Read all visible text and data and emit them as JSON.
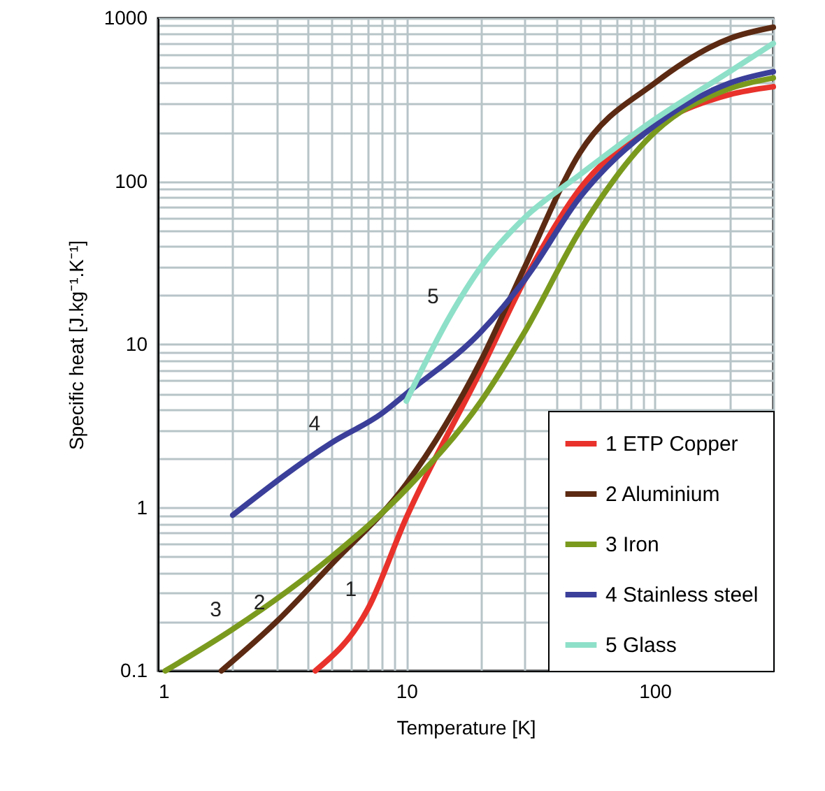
{
  "chart_data": {
    "type": "line",
    "xlabel": "Temperature [K]",
    "ylabel": "Specific heat [J.kg⁻¹.K⁻¹]",
    "log": "xy",
    "grid": true,
    "legend": "bottom right",
    "line_style": "solid",
    "marker": "none",
    "xlim": [
      1,
      300
    ],
    "ylim": [
      0.1,
      1000
    ],
    "xticks": [
      1,
      {
        "value": 2,
        "label": null
      },
      {
        "value": 3,
        "label": null
      },
      {
        "value": 4,
        "label": null
      },
      {
        "value": 5,
        "label": null
      },
      {
        "value": 6,
        "label": null
      },
      {
        "value": 7,
        "label": null
      },
      {
        "value": 8,
        "label": null
      },
      {
        "value": 9,
        "label": null
      },
      10,
      {
        "value": 20,
        "label": null
      },
      {
        "value": 30,
        "label": null
      },
      {
        "value": 40,
        "label": null
      },
      {
        "value": 50,
        "label": null
      },
      {
        "value": 60,
        "label": null
      },
      {
        "value": 70,
        "label": null
      },
      {
        "value": 80,
        "label": null
      },
      {
        "value": 90,
        "label": null
      },
      100,
      {
        "value": 200,
        "label": null
      },
      {
        "value": 300,
        "label": null
      }
    ],
    "yticks": [
      0.1,
      {
        "value": 0.2,
        "label": null
      },
      {
        "value": 0.3,
        "label": null
      },
      {
        "value": 0.4,
        "label": null
      },
      {
        "value": 0.5,
        "label": null
      },
      {
        "value": 0.6,
        "label": null
      },
      {
        "value": 0.7,
        "label": null
      },
      {
        "value": 0.8,
        "label": null
      },
      {
        "value": 0.9,
        "label": null
      },
      1,
      {
        "value": 2,
        "label": null
      },
      {
        "value": 3,
        "label": null
      },
      {
        "value": 4,
        "label": null
      },
      {
        "value": 5,
        "label": null
      },
      {
        "value": 6,
        "label": null
      },
      {
        "value": 7,
        "label": null
      },
      {
        "value": 8,
        "label": null
      },
      {
        "value": 9,
        "label": null
      },
      10,
      {
        "value": 20,
        "label": null
      },
      {
        "value": 30,
        "label": null
      },
      {
        "value": 40,
        "label": null
      },
      {
        "value": 50,
        "label": null
      },
      {
        "value": 60,
        "label": null
      },
      {
        "value": 70,
        "label": null
      },
      {
        "value": 80,
        "label": null
      },
      {
        "value": 90,
        "label": null
      },
      100,
      {
        "value": 200,
        "label": null
      },
      {
        "value": 300,
        "label": null
      },
      {
        "value": 400,
        "label": null
      },
      {
        "value": 500,
        "label": null
      },
      {
        "value": 600,
        "label": null
      },
      {
        "value": 700,
        "label": null
      },
      {
        "value": 800,
        "label": null
      },
      {
        "value": 900,
        "label": null
      },
      1000
    ],
    "series": [
      {
        "name": "1 ETP Copper",
        "color": "#e8322b",
        "x": [
          4.3,
          7,
          10,
          20,
          30,
          50,
          100,
          200,
          300
        ],
        "values": [
          0.1,
          0.24,
          0.87,
          7,
          25,
          90,
          220,
          340,
          380
        ]
      },
      {
        "name": "2 Aluminium",
        "color": "#5c2a12",
        "x": [
          1.8,
          3,
          5,
          10,
          20,
          30,
          50,
          100,
          200,
          300
        ],
        "values": [
          0.1,
          0.2,
          0.45,
          1.4,
          8,
          30,
          150,
          400,
          750,
          880
        ]
      },
      {
        "name": "3 Iron",
        "color": "#7a9a1e",
        "x": [
          1.07,
          2,
          5,
          10,
          20,
          30,
          50,
          100,
          200,
          300
        ],
        "values": [
          0.1,
          0.18,
          0.5,
          1.3,
          4.5,
          12,
          50,
          200,
          370,
          430
        ]
      },
      {
        "name": "4 Stainless steel",
        "color": "#3b3f9a",
        "x": [
          2,
          5,
          8,
          10,
          20,
          30,
          50,
          100,
          200,
          300
        ],
        "values": [
          0.9,
          2.5,
          3.8,
          5,
          12,
          25,
          80,
          220,
          400,
          470
        ]
      },
      {
        "name": "5 Glass",
        "color": "#8ee0c8",
        "x": [
          10,
          15,
          20,
          30,
          50,
          100,
          200,
          300
        ],
        "values": [
          4.5,
          15,
          30,
          60,
          110,
          240,
          470,
          700
        ]
      }
    ],
    "annotations": [
      {
        "text": "1",
        "x": 7,
        "y": 0.24
      },
      {
        "text": "2",
        "x": 3,
        "y": 0.2
      },
      {
        "text": "3",
        "x": 2,
        "y": 0.18
      },
      {
        "text": "4",
        "x": 5,
        "y": 2.5
      },
      {
        "text": "5",
        "x": 15,
        "y": 15
      }
    ]
  }
}
